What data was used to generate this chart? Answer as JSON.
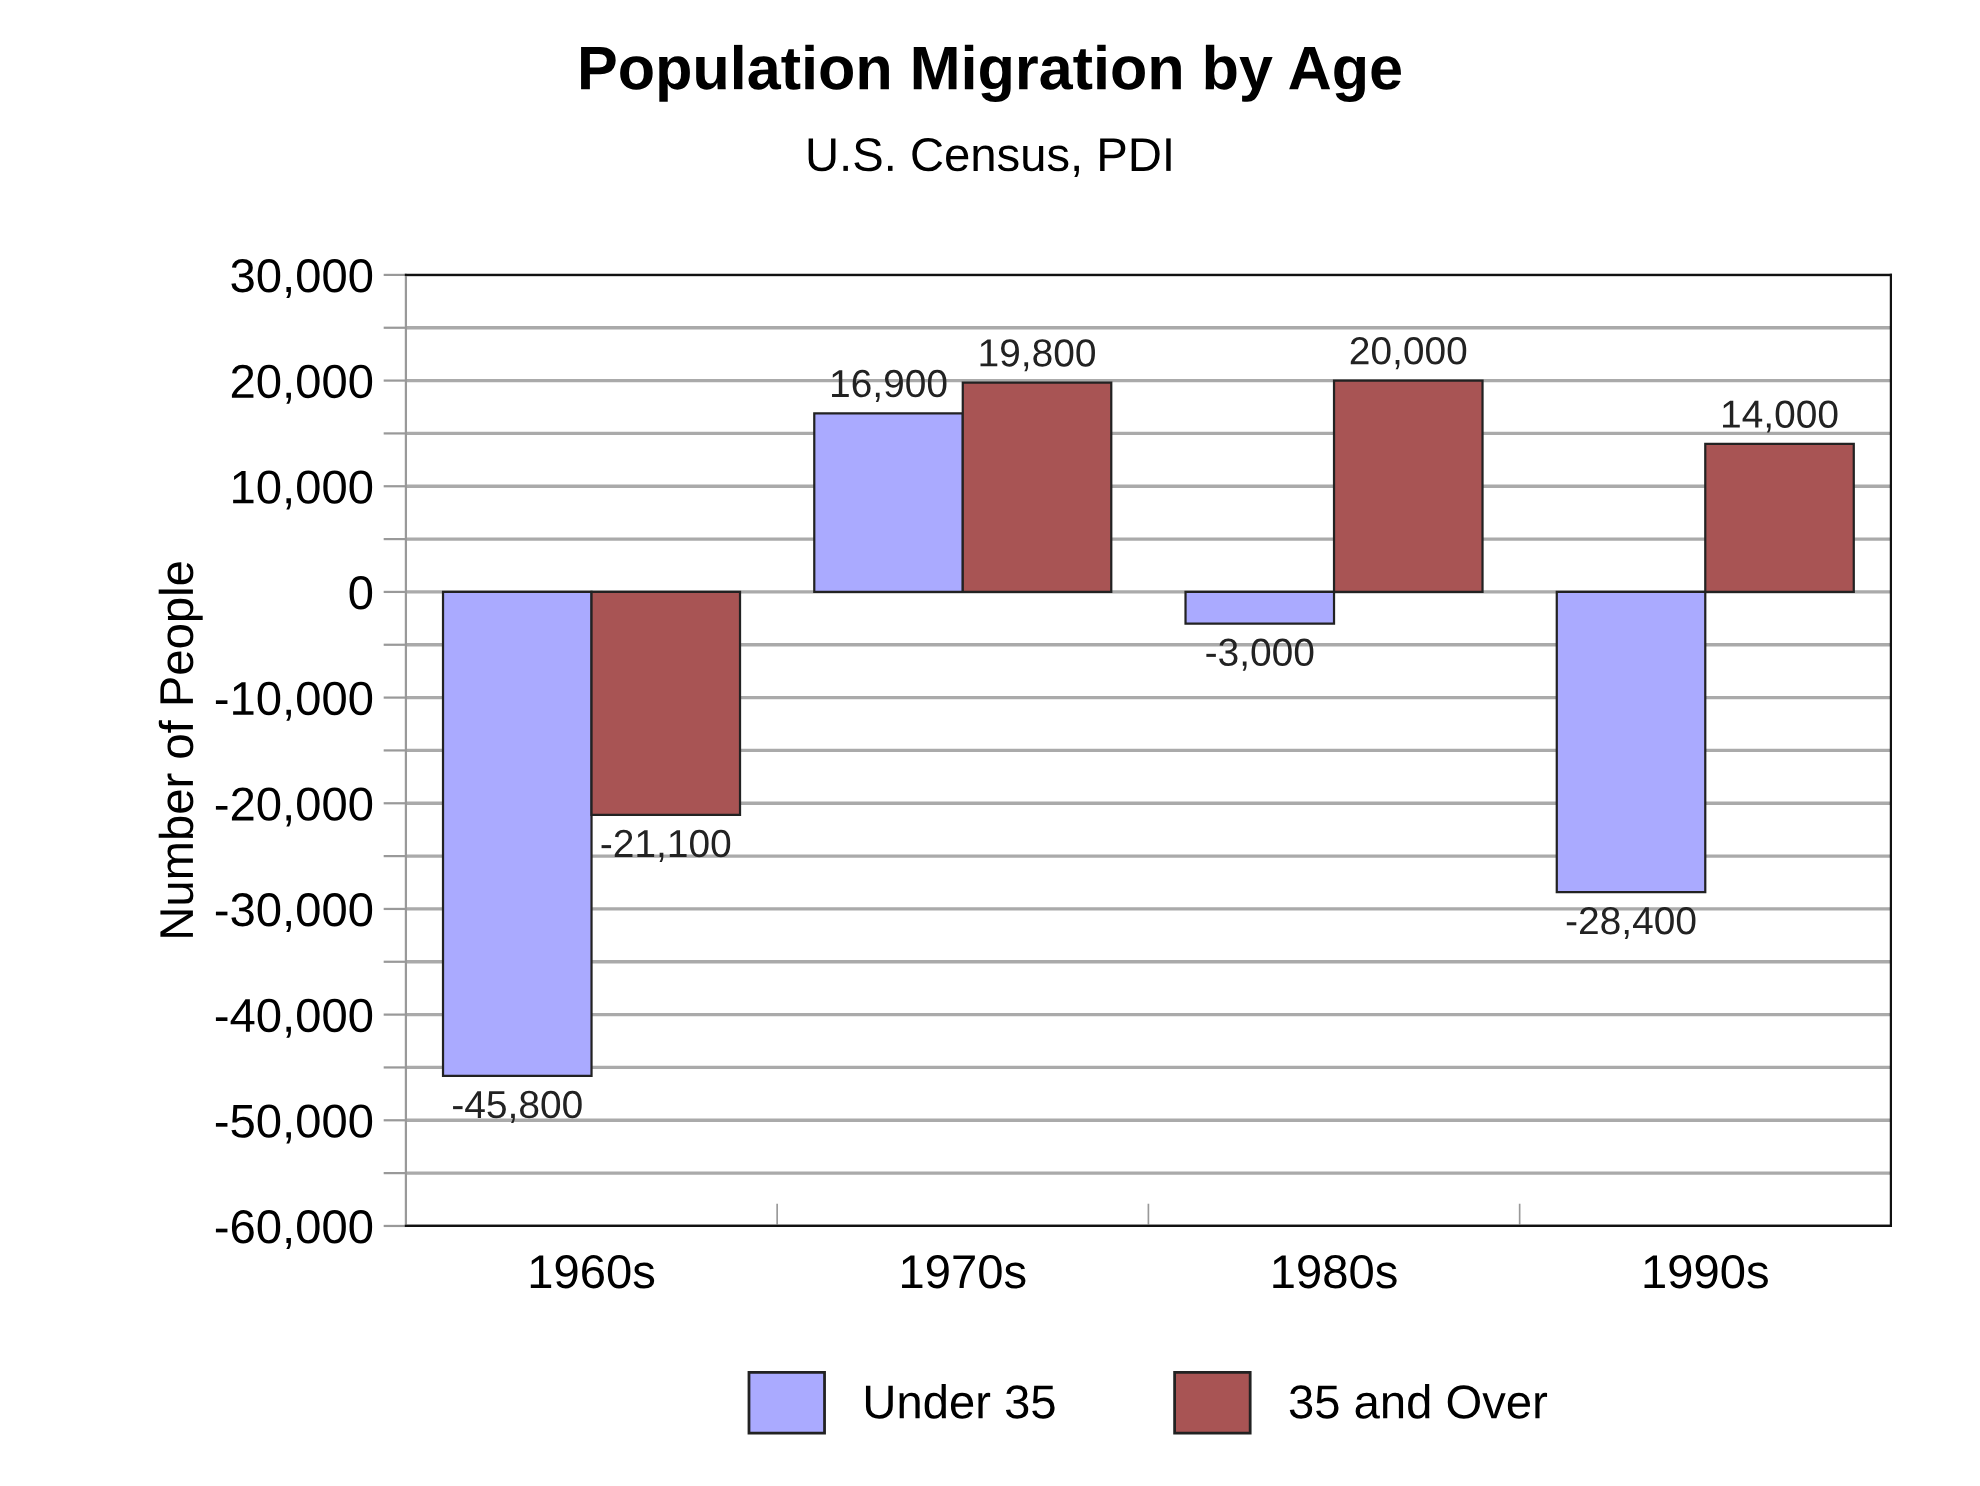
{
  "chart_data": {
    "type": "bar",
    "title": "Population Migration by Age",
    "subtitle": "U.S. Census, PDI",
    "ylabel": "Number of People",
    "categories": [
      "1960s",
      "1970s",
      "1980s",
      "1990s"
    ],
    "series": [
      {
        "name": "Under 35",
        "color": "#aaaaff",
        "values": [
          -45800,
          16900,
          -3000,
          -28400
        ],
        "value_labels": [
          "-45,800",
          "16,900",
          "-3,000",
          "-28,400"
        ]
      },
      {
        "name": "35 and Over",
        "color": "#a85454",
        "values": [
          -21100,
          19800,
          20000,
          14000
        ],
        "value_labels": [
          "-21,100",
          "19,800",
          "20,000",
          "14,000"
        ]
      }
    ],
    "ylim": [
      -60000,
      30000
    ],
    "yticks": [
      {
        "value": -60000,
        "label": "-60,000"
      },
      {
        "value": -55000,
        "label": null
      },
      {
        "value": -50000,
        "label": "-50,000"
      },
      {
        "value": -45000,
        "label": null
      },
      {
        "value": -40000,
        "label": "-40,000"
      },
      {
        "value": -35000,
        "label": null
      },
      {
        "value": -30000,
        "label": "-30,000"
      },
      {
        "value": -25000,
        "label": null
      },
      {
        "value": -20000,
        "label": "-20,000"
      },
      {
        "value": -15000,
        "label": null
      },
      {
        "value": -10000,
        "label": "-10,000"
      },
      {
        "value": -5000,
        "label": null
      },
      0,
      {
        "value": 5000,
        "label": null
      },
      {
        "value": 10000,
        "label": "10,000"
      },
      {
        "value": 15000,
        "label": null
      },
      {
        "value": 20000,
        "label": "20,000"
      },
      {
        "value": 25000,
        "label": null
      },
      {
        "value": 30000,
        "label": "30,000"
      }
    ],
    "grid": "y",
    "legend": "bottom"
  }
}
